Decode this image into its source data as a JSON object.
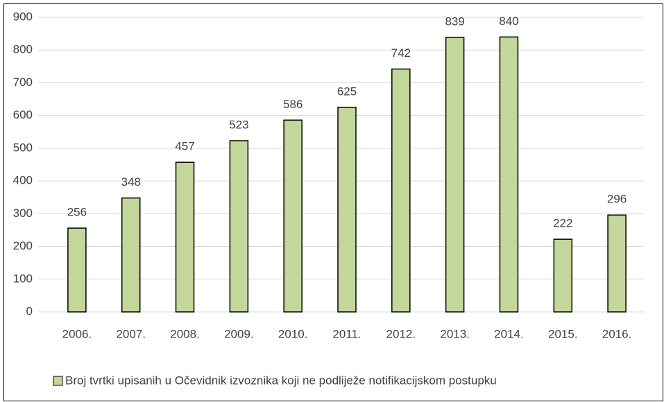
{
  "chart_data": {
    "type": "bar",
    "categories": [
      "2006.",
      "2007.",
      "2008.",
      "2009.",
      "2010.",
      "2011.",
      "2012.",
      "2013.",
      "2014.",
      "2015.",
      "2016."
    ],
    "series": [
      {
        "name": "Broj tvrtki upisanih u Očevidnik izvoznika koji ne podliježe notifikacijskom postupku",
        "color": "#c4d79b",
        "values": [
          256,
          348,
          457,
          523,
          586,
          625,
          742,
          839,
          840,
          222,
          296
        ]
      }
    ],
    "ylim": [
      0,
      900
    ],
    "yticks": [
      0,
      100,
      200,
      300,
      400,
      500,
      600,
      700,
      800,
      900
    ],
    "grid": true,
    "legend": "bottom"
  }
}
